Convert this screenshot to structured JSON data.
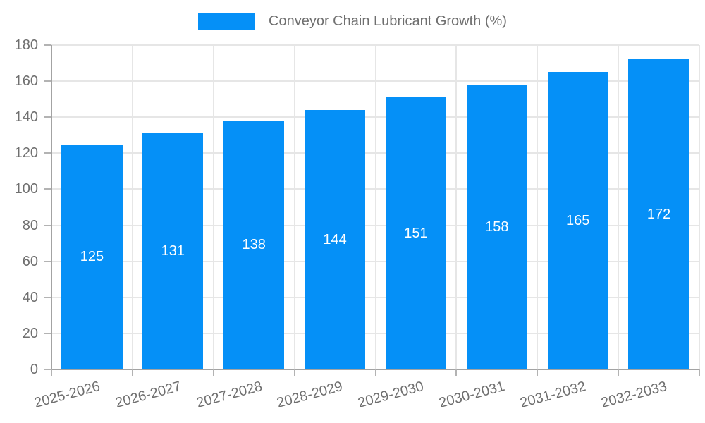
{
  "chart_data": {
    "type": "bar",
    "legend_label": "Conveyor Chain Lubricant Growth (%)",
    "categories": [
      "2025-2026",
      "2026-2027",
      "2027-2028",
      "2028-2029",
      "2029-2030",
      "2030-2031",
      "2031-2032",
      "2032-2033"
    ],
    "values": [
      125,
      131,
      138,
      144,
      151,
      158,
      165,
      172
    ],
    "ylim": [
      0,
      180
    ],
    "ytick_step": 20,
    "yticks": [
      0,
      20,
      40,
      60,
      80,
      100,
      120,
      140,
      160,
      180
    ],
    "grid": true,
    "legend_position": "top-center",
    "colors": {
      "bar": "#0590f7",
      "bar_value_text": "#ffffff",
      "grid": "#e6e6e6",
      "axis": "#a3a3a3",
      "tick": "#b3b3b3",
      "text": "#6f6f6f"
    }
  }
}
